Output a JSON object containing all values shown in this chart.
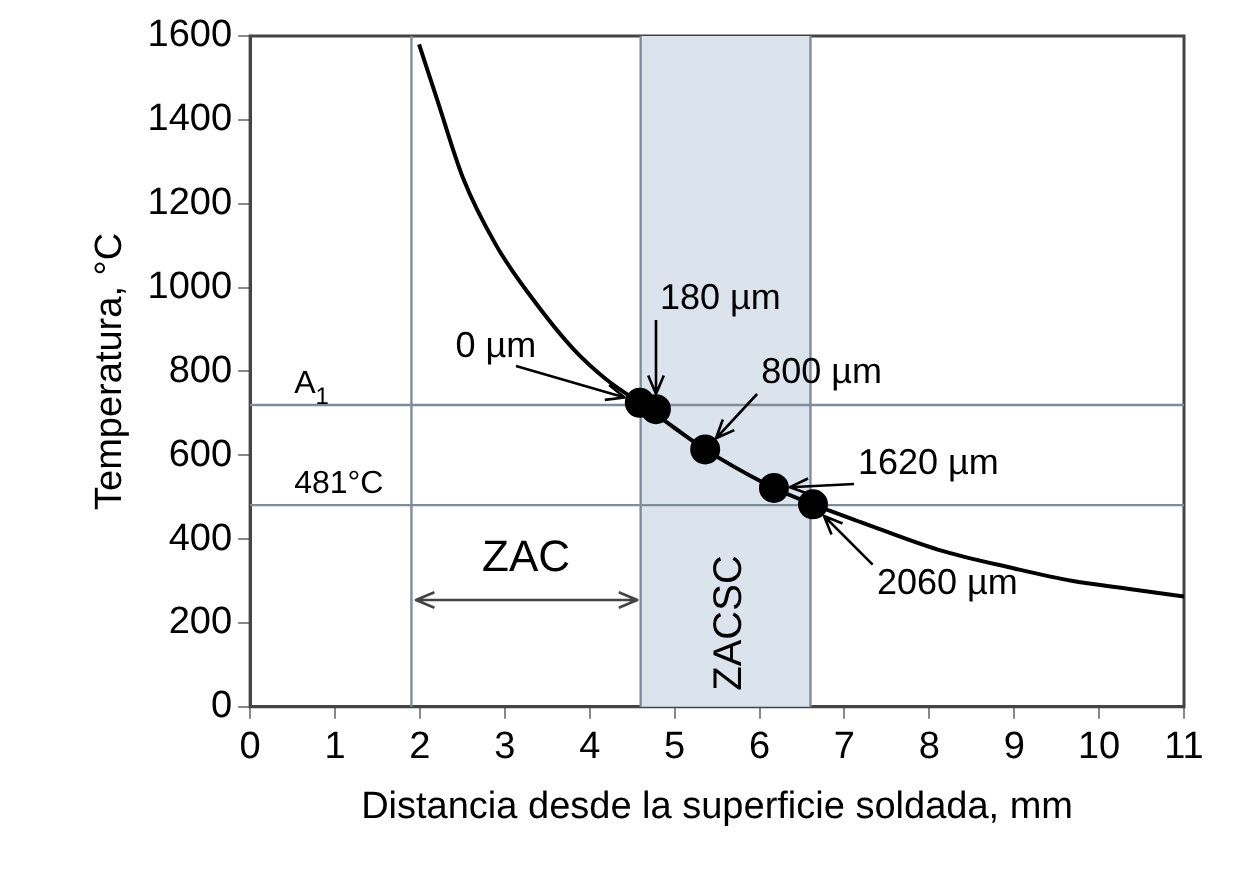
{
  "chart_data": {
    "type": "line",
    "xlabel": "Distancia desde la superficie soldada, mm",
    "ylabel": "Temperatura, °C",
    "xlim": [
      0,
      11
    ],
    "xticks": [
      0,
      1,
      2,
      3,
      4,
      5,
      6,
      7,
      8,
      9,
      10,
      11
    ],
    "ylim": [
      0,
      1600
    ],
    "yticks": [
      0,
      200,
      400,
      600,
      800,
      1000,
      1200,
      1400,
      1600
    ],
    "grid": false,
    "legend": false,
    "series": [
      {
        "color": "#000000",
        "marker": "none",
        "x": [
          1.99,
          2.2,
          2.51,
          2.9,
          3.32,
          3.8,
          4.2,
          4.59,
          5.0,
          5.36,
          6.17,
          6.63,
          7.2,
          8.1,
          9.0,
          9.69,
          10.4,
          11
        ],
        "values": [
          1580,
          1450,
          1260,
          1100,
          975,
          855,
          780,
          725,
          665,
          614,
          522,
          483,
          440,
          375,
          330,
          300,
          280,
          263
        ]
      },
      {
        "type": "scatter",
        "color": "#000000",
        "marker": "circle",
        "x": [
          4.59,
          4.78,
          5.36,
          6.17,
          6.63
        ],
        "values": [
          725,
          710,
          614,
          522,
          483
        ]
      }
    ],
    "ref_lines": [
      {
        "axis": "y",
        "value": 720,
        "label": "A$_{1}$",
        "color": "#7f8c99"
      },
      {
        "axis": "y",
        "value": 481,
        "label": "481°C",
        "color": "#7f8c99"
      },
      {
        "axis": "x",
        "value": 1.9,
        "color": "#7f8c99"
      },
      {
        "axis": "x",
        "value": 4.6,
        "color": "#7f8c99"
      },
      {
        "axis": "x",
        "value": 6.6,
        "color": "#7f8c99"
      }
    ],
    "bands": [
      {
        "axis": "x",
        "from": 4.6,
        "to": 6.6,
        "label": "ZACSC",
        "color": "#dbe3ec"
      }
    ],
    "annotations": [
      {
        "text": "0 µm",
        "x": 4.59,
        "y": 725
      },
      {
        "text": "180 µm",
        "x": 4.78,
        "y": 710
      },
      {
        "text": "800 µm",
        "x": 5.36,
        "y": 614
      },
      {
        "text": "1620 µm",
        "x": 6.17,
        "y": 522
      },
      {
        "text": "2060 µm",
        "x": 6.63,
        "y": 483
      },
      "ZAC"
    ]
  }
}
